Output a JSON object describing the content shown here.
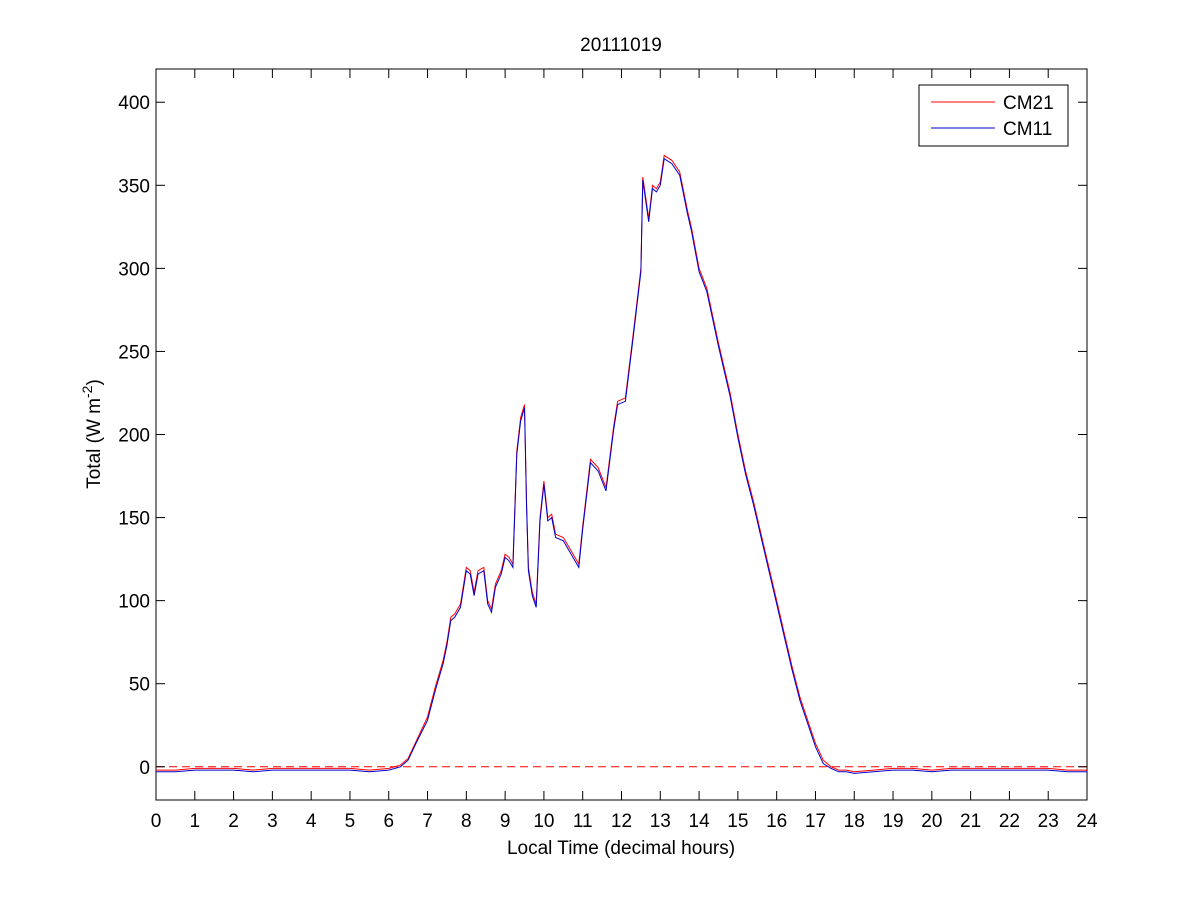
{
  "chart_data": {
    "type": "line",
    "title": "20111019",
    "xlabel": "Local Time (decimal hours)",
    "ylabel": "Total (W m",
    "ylabel_sup": "-2",
    "ylabel_end": ")",
    "xlim": [
      0,
      24
    ],
    "ylim": [
      -20,
      420
    ],
    "xticks": [
      0,
      1,
      2,
      3,
      4,
      5,
      6,
      7,
      8,
      9,
      10,
      11,
      12,
      13,
      14,
      15,
      16,
      17,
      18,
      19,
      20,
      21,
      22,
      23,
      24
    ],
    "yticks": [
      0,
      50,
      100,
      150,
      200,
      250,
      300,
      350,
      400
    ],
    "grid": false,
    "legend_position": "top-right",
    "reference_line": {
      "y": 0,
      "style": "dashed",
      "color": "#ff0000"
    },
    "x": [
      0,
      0.5,
      1,
      1.5,
      2,
      2.5,
      3,
      3.5,
      4,
      4.5,
      5,
      5.5,
      6,
      6.3,
      6.5,
      6.7,
      7,
      7.2,
      7.4,
      7.5,
      7.6,
      7.7,
      7.85,
      8,
      8.1,
      8.2,
      8.3,
      8.45,
      8.55,
      8.65,
      8.75,
      8.9,
      9.0,
      9.1,
      9.2,
      9.3,
      9.4,
      9.5,
      9.55,
      9.6,
      9.7,
      9.8,
      9.9,
      10.0,
      10.1,
      10.2,
      10.3,
      10.5,
      10.7,
      10.9,
      11.0,
      11.2,
      11.4,
      11.6,
      11.8,
      11.9,
      12.1,
      12.3,
      12.5,
      12.55,
      12.7,
      12.8,
      12.9,
      13.0,
      13.1,
      13.3,
      13.5,
      13.7,
      13.8,
      14.0,
      14.2,
      14.5,
      14.8,
      15.0,
      15.2,
      15.4,
      15.6,
      15.8,
      16.0,
      16.2,
      16.4,
      16.6,
      16.8,
      17.0,
      17.2,
      17.4,
      17.6,
      17.8,
      18.0,
      18.5,
      19,
      19.5,
      20,
      20.5,
      21,
      21.5,
      22,
      22.5,
      23,
      23.5,
      24
    ],
    "series": [
      {
        "name": "CM21",
        "color": "#ff0000",
        "values": [
          -2,
          -2,
          -1,
          -1,
          -1,
          -2,
          -1,
          -1,
          -1,
          -1,
          -1,
          -2,
          -1,
          1,
          5,
          15,
          30,
          48,
          64,
          75,
          90,
          92,
          98,
          120,
          118,
          105,
          118,
          120,
          100,
          95,
          110,
          118,
          128,
          126,
          122,
          190,
          210,
          218,
          160,
          120,
          105,
          98,
          150,
          172,
          150,
          152,
          140,
          138,
          130,
          122,
          145,
          185,
          180,
          168,
          205,
          220,
          222,
          260,
          300,
          355,
          330,
          350,
          348,
          352,
          368,
          365,
          358,
          335,
          325,
          300,
          288,
          255,
          225,
          200,
          178,
          160,
          140,
          120,
          100,
          80,
          60,
          42,
          28,
          14,
          4,
          0,
          -2,
          -2,
          -3,
          -2,
          -1,
          -1,
          -2,
          -1,
          -1,
          -1,
          -1,
          -1,
          -1,
          -2,
          -2
        ]
      },
      {
        "name": "CM11",
        "color": "#0000cc",
        "values": [
          -3,
          -3,
          -2,
          -2,
          -2,
          -3,
          -2,
          -2,
          -2,
          -2,
          -2,
          -3,
          -2,
          0,
          4,
          14,
          28,
          46,
          62,
          73,
          88,
          90,
          96,
          118,
          116,
          103,
          116,
          118,
          98,
          93,
          108,
          116,
          126,
          124,
          120,
          188,
          208,
          216,
          158,
          118,
          103,
          96,
          148,
          170,
          148,
          150,
          138,
          136,
          128,
          120,
          143,
          183,
          178,
          166,
          203,
          218,
          220,
          258,
          298,
          353,
          328,
          348,
          346,
          350,
          366,
          363,
          356,
          333,
          323,
          298,
          286,
          253,
          223,
          198,
          176,
          158,
          138,
          118,
          98,
          78,
          58,
          40,
          26,
          12,
          2,
          -1,
          -3,
          -3,
          -4,
          -3,
          -2,
          -2,
          -3,
          -2,
          -2,
          -2,
          -2,
          -2,
          -2,
          -3,
          -3
        ]
      }
    ]
  }
}
